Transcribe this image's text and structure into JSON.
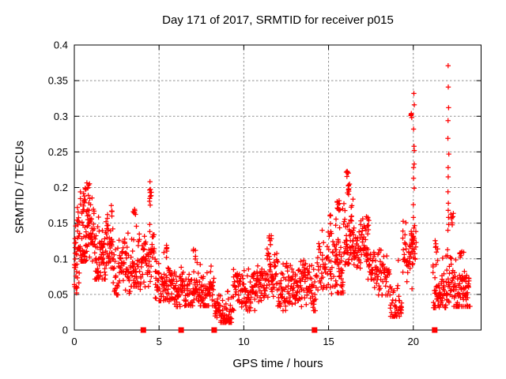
{
  "chart_data": {
    "type": "scatter",
    "title": "Day 171 of 2017, SRMTID for receiver p015",
    "xlabel": "GPS time / hours",
    "ylabel": "SRMTID / TECUs",
    "xlim": [
      0,
      24
    ],
    "ylim": [
      0,
      0.4
    ],
    "xticks": [
      0,
      5,
      10,
      15,
      20
    ],
    "xtick_labels": [
      "0",
      "5",
      "10",
      "15",
      "20"
    ],
    "yticks": [
      0,
      0.05,
      0.1,
      0.15,
      0.2,
      0.25,
      0.3,
      0.35,
      0.4
    ],
    "ytick_labels": [
      "0",
      "0.05",
      "0.1",
      "0.15",
      "0.2",
      "0.25",
      "0.3",
      "0.35",
      "0.4"
    ],
    "grid": true,
    "legend_position": "none",
    "marker": "plus",
    "marker_color": "#ff0000",
    "grid_color": "#909090",
    "border_color": "#000000",
    "background_color": "#ffffff",
    "density_bands": [
      [
        0.0,
        0.3,
        0.05,
        0.185,
        40
      ],
      [
        0.3,
        1.2,
        0.095,
        0.205,
        95
      ],
      [
        1.2,
        2.0,
        0.07,
        0.165,
        75
      ],
      [
        2.0,
        2.35,
        0.065,
        0.155,
        28
      ],
      [
        2.35,
        3.3,
        0.048,
        0.138,
        70
      ],
      [
        3.3,
        3.85,
        0.06,
        0.15,
        45
      ],
      [
        3.85,
        4.35,
        0.05,
        0.135,
        35
      ],
      [
        4.35,
        4.75,
        0.06,
        0.155,
        28
      ],
      [
        4.75,
        5.35,
        0.04,
        0.115,
        45
      ],
      [
        5.35,
        6.5,
        0.032,
        0.095,
        85
      ],
      [
        6.5,
        8.3,
        0.033,
        0.105,
        130
      ],
      [
        8.3,
        9.35,
        0.01,
        0.06,
        75
      ],
      [
        9.35,
        11.3,
        0.026,
        0.09,
        140
      ],
      [
        11.3,
        12.0,
        0.032,
        0.12,
        55
      ],
      [
        12.0,
        14.3,
        0.026,
        0.1,
        160
      ],
      [
        14.3,
        15.35,
        0.04,
        0.14,
        62
      ],
      [
        15.35,
        15.9,
        0.05,
        0.185,
        55
      ],
      [
        15.9,
        16.55,
        0.09,
        0.205,
        65
      ],
      [
        16.55,
        17.6,
        0.07,
        0.162,
        80
      ],
      [
        17.6,
        18.6,
        0.048,
        0.125,
        62
      ],
      [
        18.6,
        19.35,
        0.018,
        0.105,
        45
      ],
      [
        19.35,
        20.2,
        0.055,
        0.155,
        55
      ],
      [
        21.15,
        22.35,
        0.03,
        0.115,
        95
      ],
      [
        22.35,
        23.35,
        0.032,
        0.115,
        85
      ]
    ],
    "peak_blobs": [
      [
        0.75,
        0.205,
        0.2,
        0.012,
        7
      ],
      [
        0.5,
        0.175,
        0.25,
        0.02,
        10
      ],
      [
        2.2,
        0.168,
        0.06,
        0.012,
        5
      ],
      [
        3.55,
        0.165,
        0.1,
        0.009,
        7
      ],
      [
        4.5,
        0.19,
        0.09,
        0.028,
        10
      ],
      [
        5.45,
        0.112,
        0.06,
        0.015,
        6
      ],
      [
        7.1,
        0.108,
        0.12,
        0.01,
        5
      ],
      [
        11.55,
        0.128,
        0.1,
        0.012,
        6
      ],
      [
        15.1,
        0.15,
        0.06,
        0.015,
        6
      ],
      [
        15.55,
        0.172,
        0.15,
        0.01,
        8
      ],
      [
        16.1,
        0.221,
        0.1,
        0.006,
        6
      ],
      [
        16.2,
        0.196,
        0.08,
        0.008,
        5
      ],
      [
        17.3,
        0.15,
        0.08,
        0.012,
        6
      ],
      [
        19.88,
        0.302,
        0.05,
        0.005,
        5
      ],
      [
        19.95,
        0.125,
        0.12,
        0.018,
        10
      ],
      [
        21.33,
        0.115,
        0.06,
        0.012,
        5
      ],
      [
        22.3,
        0.155,
        0.1,
        0.014,
        7
      ],
      [
        22.75,
        0.108,
        0.1,
        0.01,
        5
      ]
    ],
    "outlier_streaks": [
      {
        "x": 20.03,
        "ys": [
          0.332,
          0.316,
          0.282,
          0.258,
          0.252,
          0.233,
          0.228,
          0.213,
          0.199,
          0.176,
          0.158,
          0.143
        ]
      },
      {
        "x": 22.07,
        "ys": [
          0.371,
          0.341,
          0.312,
          0.294,
          0.269,
          0.247,
          0.228,
          0.215,
          0.194,
          0.178,
          0.168,
          0.158,
          0.148,
          0.14
        ]
      }
    ],
    "axis_marker_squares_x": [
      4.07,
      6.3,
      8.25,
      14.17,
      21.26
    ]
  }
}
